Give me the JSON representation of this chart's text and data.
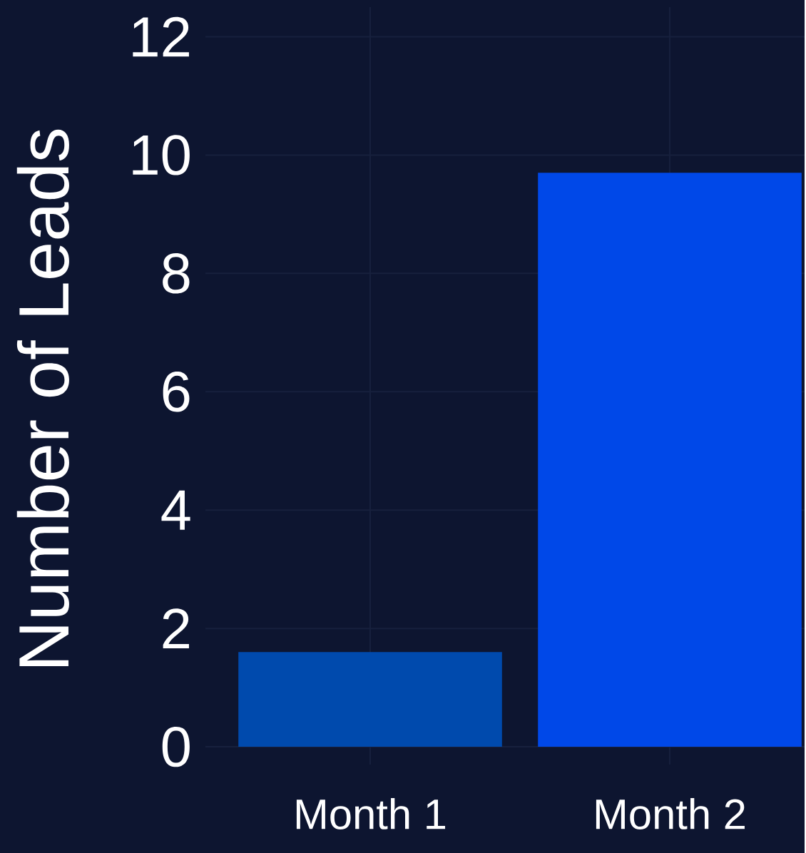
{
  "chart_data": {
    "type": "bar",
    "ylabel": "Number of Leads",
    "categories": [
      "Month 1",
      "Month 2"
    ],
    "values": [
      1.6,
      9.7
    ],
    "colors": [
      "#004aad",
      "#0048e8"
    ],
    "ylim": [
      -0.3,
      12.5
    ],
    "yticks": [
      0,
      2,
      4,
      6,
      8,
      10,
      12
    ],
    "grid": true
  }
}
